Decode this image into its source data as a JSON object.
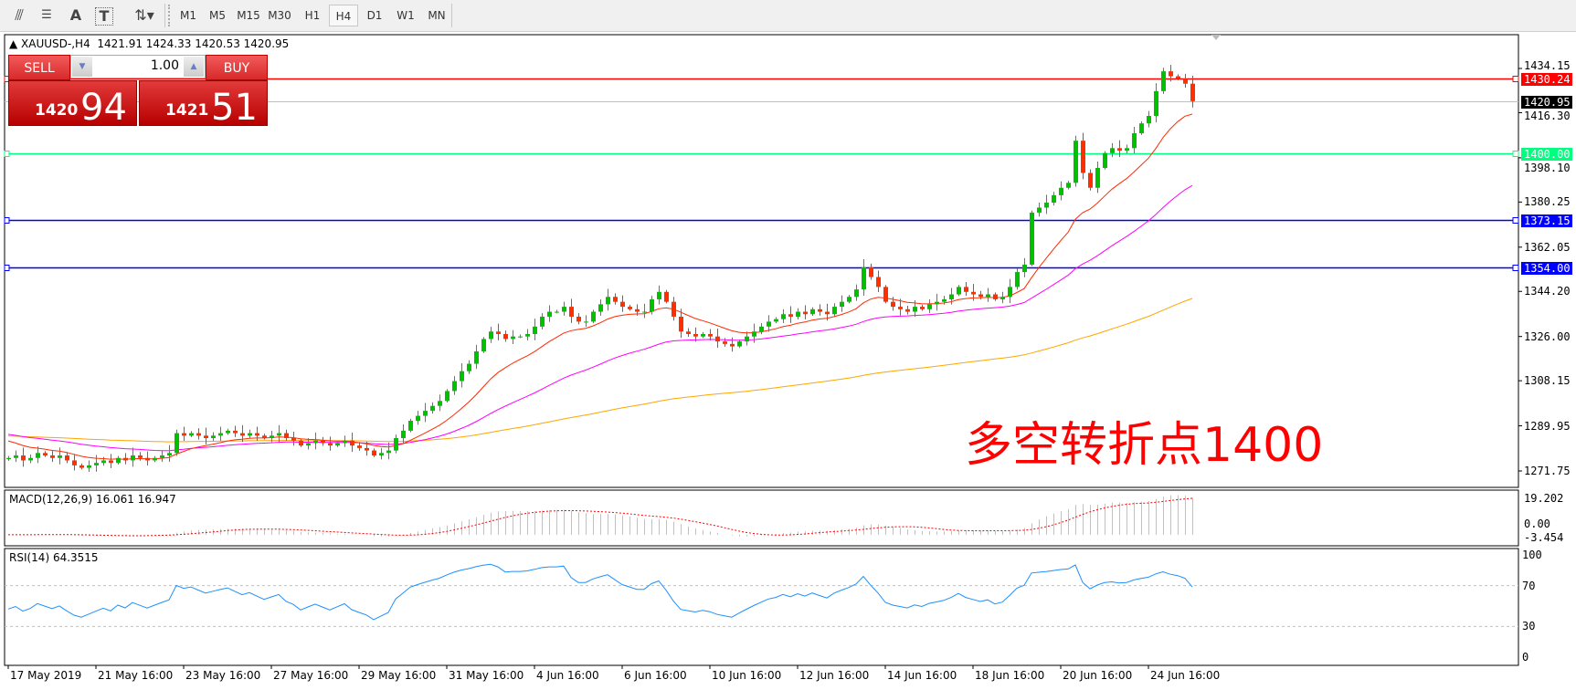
{
  "toolbar": {
    "icons": [
      "elliott-wave-icon",
      "fibonacci-icon",
      "text-icon",
      "text-label-icon",
      "arrows-icon"
    ],
    "text_icon": "A",
    "text_label_icon": "T",
    "timeframes": [
      "M1",
      "M5",
      "M15",
      "M30",
      "H1",
      "H4",
      "D1",
      "W1",
      "MN"
    ],
    "active_timeframe": "H4"
  },
  "chart": {
    "symbol_header": "XAUUSD-,H4",
    "ohlc_header": "1421.91 1424.33 1420.53 1420.95",
    "trade_panel": {
      "sell_label": "SELL",
      "buy_label": "BUY",
      "lot": "1.00",
      "sell_prefix": "1420",
      "sell_big": "94",
      "buy_prefix": "1421",
      "buy_big": "51"
    },
    "annotation": "多空转折点1400",
    "price_axis": [
      "1434.15",
      "1416.30",
      "1398.10",
      "1380.25",
      "1362.05",
      "1344.20",
      "1326.00",
      "1308.15",
      "1289.95",
      "1271.75"
    ],
    "levels": [
      {
        "value": "1430.24",
        "color": "#ff0000"
      },
      {
        "value": "1400.00",
        "color": "#00ff7f"
      },
      {
        "value": "1373.15",
        "color": "#0000ff"
      },
      {
        "value": "1354.00",
        "color": "#0000ff"
      }
    ],
    "bid": {
      "value": "1420.95",
      "color": "#000000"
    },
    "colors": {
      "bull": "#00c000",
      "bear": "#ff3000",
      "ma_fast": "#ff2a00",
      "ma_mid": "#ff00ff",
      "ma_slow": "#ffa500"
    }
  },
  "macd": {
    "label": "MACD(12,26,9) 16.061 16.947",
    "axis": [
      "19.202",
      "0.00",
      "-3.454"
    ]
  },
  "rsi": {
    "label": "RSI(14) 64.3515",
    "axis": [
      "100",
      "70",
      "30",
      "0"
    ],
    "color": "#1e90ff"
  },
  "dates": [
    "17 May 2019",
    "21 May 16:00",
    "23 May 16:00",
    "27 May 16:00",
    "29 May 16:00",
    "31 May 16:00",
    "4 Jun 16:00",
    "6 Jun 16:00",
    "10 Jun 16:00",
    "12 Jun 16:00",
    "14 Jun 16:00",
    "18 Jun 16:00",
    "20 Jun 16:00",
    "24 Jun 16:00"
  ],
  "chart_data": {
    "type": "candlestick",
    "symbol": "XAUUSD-",
    "timeframe": "H4",
    "ylim": [
      1271.75,
      1434.15
    ],
    "closes": [
      1277,
      1278,
      1276,
      1277,
      1279,
      1278,
      1277,
      1278,
      1276,
      1274,
      1273,
      1274,
      1275,
      1276,
      1275,
      1277,
      1276,
      1278,
      1277,
      1276,
      1277,
      1278,
      1279,
      1287,
      1286,
      1287,
      1286,
      1285,
      1286,
      1287,
      1288,
      1287,
      1286,
      1287,
      1286,
      1285,
      1286,
      1287,
      1285,
      1284,
      1282,
      1283,
      1284,
      1283,
      1282,
      1283,
      1284,
      1282,
      1281,
      1280,
      1278,
      1279,
      1280,
      1285,
      1288,
      1292,
      1294,
      1296,
      1298,
      1300,
      1304,
      1308,
      1312,
      1315,
      1320,
      1325,
      1328,
      1327,
      1325,
      1326,
      1326,
      1327,
      1330,
      1334,
      1336,
      1336,
      1338,
      1334,
      1332,
      1332,
      1336,
      1339,
      1342,
      1340,
      1338,
      1337,
      1336,
      1336,
      1341,
      1344,
      1340,
      1334,
      1328,
      1327,
      1326,
      1327,
      1326,
      1324,
      1323,
      1322,
      1324,
      1326,
      1328,
      1330,
      1332,
      1333,
      1335,
      1334,
      1336,
      1335,
      1337,
      1336,
      1335,
      1338,
      1340,
      1342,
      1345,
      1354,
      1350,
      1346,
      1340,
      1338,
      1337,
      1336,
      1338,
      1337,
      1339,
      1340,
      1341,
      1343,
      1346,
      1344,
      1343,
      1342,
      1343,
      1341,
      1342,
      1346,
      1352,
      1355,
      1376,
      1378,
      1380,
      1383,
      1386,
      1388,
      1405,
      1392,
      1386,
      1394,
      1400,
      1402,
      1401,
      1402,
      1408,
      1412,
      1415,
      1425,
      1433,
      1431,
      1430,
      1428,
      1420.95
    ],
    "rsi_levels": [
      70,
      30
    ]
  }
}
